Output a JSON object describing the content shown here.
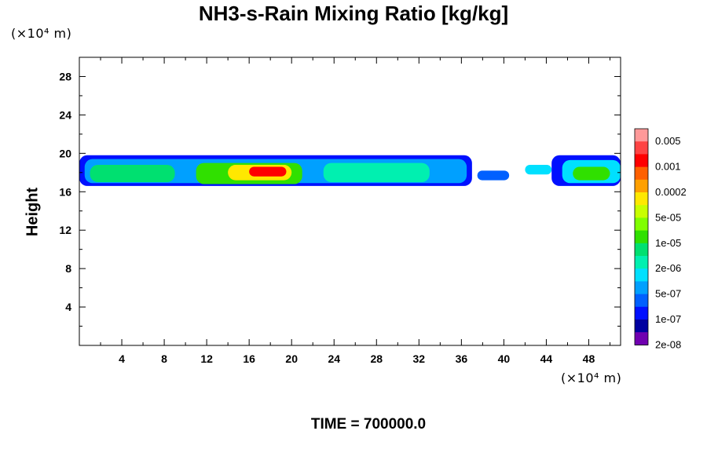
{
  "chart_data": {
    "type": "heatmap",
    "title": "NH3-s-Rain Mixing Ratio [kg/kg]",
    "xlabel": "",
    "ylabel": "Height",
    "x_unit_label": "(×10⁴ m)",
    "y_unit_label": "(×10⁴ m)",
    "xlim": [
      0,
      51
    ],
    "ylim": [
      0,
      30
    ],
    "x_ticks": [
      "4",
      "8",
      "12",
      "16",
      "20",
      "24",
      "28",
      "32",
      "36",
      "40",
      "44",
      "48"
    ],
    "y_ticks": [
      "4",
      "8",
      "12",
      "16",
      "20",
      "24",
      "28"
    ],
    "x_tick_values": [
      4,
      8,
      12,
      16,
      20,
      24,
      28,
      32,
      36,
      40,
      44,
      48
    ],
    "y_tick_values": [
      4,
      8,
      12,
      16,
      20,
      24,
      28
    ],
    "colorbar": {
      "colors": [
        "#ff9999",
        "#ff4444",
        "#ff0000",
        "#ff6000",
        "#ffa000",
        "#ffe800",
        "#c8ff00",
        "#80ff00",
        "#30e000",
        "#00e070",
        "#00f0b0",
        "#00e0ff",
        "#00a0ff",
        "#0060ff",
        "#0010ff",
        "#0000a0",
        "#7000b0"
      ],
      "labels": [
        "0.005",
        "0.001",
        "0.0002",
        "5e-05",
        "1e-05",
        "2e-06",
        "5e-07",
        "1e-07",
        "2e-08"
      ]
    },
    "blobs": [
      {
        "x0": 0,
        "x1": 37,
        "y0": 16.6,
        "y1": 19.8,
        "level": 2
      },
      {
        "x0": 0.5,
        "x1": 36.5,
        "y0": 16.9,
        "y1": 19.4,
        "level": 4
      },
      {
        "x0": 1,
        "x1": 9,
        "y0": 17.0,
        "y1": 18.8,
        "level": 7
      },
      {
        "x0": 11,
        "x1": 21,
        "y0": 16.8,
        "y1": 19.0,
        "level": 8
      },
      {
        "x0": 14,
        "x1": 20,
        "y0": 17.2,
        "y1": 18.8,
        "level": 11
      },
      {
        "x0": 16,
        "x1": 19.5,
        "y0": 17.6,
        "y1": 18.6,
        "level": 14
      },
      {
        "x0": 23,
        "x1": 33,
        "y0": 17.0,
        "y1": 19.0,
        "level": 6
      },
      {
        "x0": 37.5,
        "x1": 40.5,
        "y0": 17.2,
        "y1": 18.2,
        "level": 3
      },
      {
        "x0": 42,
        "x1": 44.5,
        "y0": 17.8,
        "y1": 18.8,
        "level": 5
      },
      {
        "x0": 44.5,
        "x1": 51,
        "y0": 16.6,
        "y1": 19.8,
        "level": 2
      },
      {
        "x0": 45.5,
        "x1": 51,
        "y0": 16.9,
        "y1": 19.3,
        "level": 5
      },
      {
        "x0": 46.5,
        "x1": 50,
        "y0": 17.2,
        "y1": 18.6,
        "level": 8
      }
    ]
  },
  "time_label": "TIME = 700000.0"
}
